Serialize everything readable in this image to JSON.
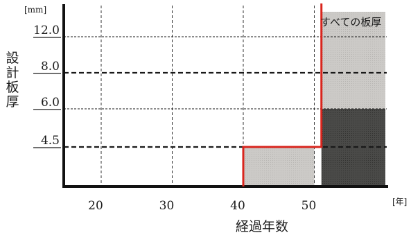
{
  "chart_data": {
    "type": "step-area",
    "ylabel": "設計板厚",
    "yunit": "[mm]",
    "xlabel": "経過年数",
    "xunit": "[年]",
    "xticks": [
      20,
      30,
      40,
      50
    ],
    "yticks": [
      {
        "value": 4.5,
        "label": "4.5"
      },
      {
        "value": 6.0,
        "label": "6.0"
      },
      {
        "value": 8.0,
        "label": "8.0"
      },
      {
        "value": 12.0,
        "label": "12.0"
      }
    ],
    "annotation": "すべての板厚",
    "regions": [
      {
        "x": [
          40,
          50
        ],
        "y": [
          0,
          4.5
        ],
        "color": "#cfcdca"
      },
      {
        "x": [
          51,
          60
        ],
        "y": [
          0,
          6.0
        ],
        "color": "#4a4a48"
      },
      {
        "x": [
          51,
          60
        ],
        "y": [
          6.0,
          13.0
        ],
        "color": "#c9c7c4"
      }
    ],
    "threshold_line": {
      "color": "#d9251d",
      "points": [
        [
          40,
          0
        ],
        [
          40,
          4.5
        ],
        [
          51,
          4.5
        ],
        [
          51,
          14.5
        ]
      ]
    }
  }
}
